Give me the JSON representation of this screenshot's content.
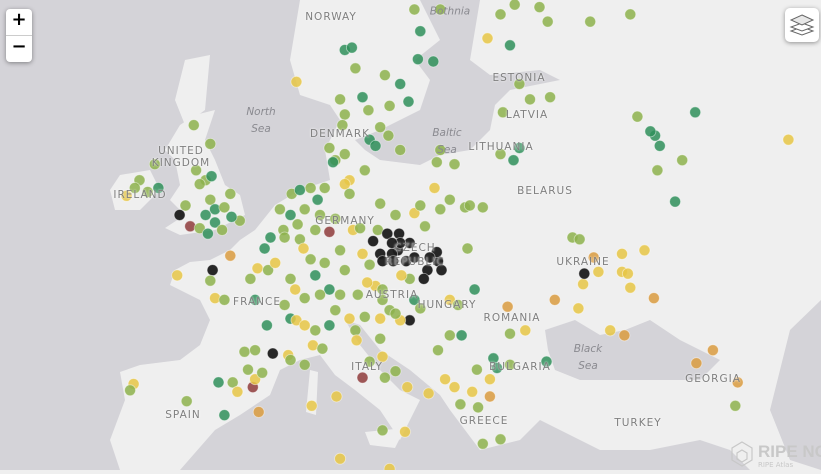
{
  "controls": {
    "zoom_in": "+",
    "zoom_out": "−",
    "layers_icon": "layers-icon"
  },
  "colors": {
    "sea": "#d4d3d8",
    "land": "#efefef",
    "g": "#2f8f5b",
    "lg": "#8db24c",
    "y": "#e6c545",
    "o": "#d99b40",
    "k": "#1b1b1b",
    "r": "#8e3b3b"
  },
  "labels": {
    "norway": "NORWAY",
    "bothnia": "Bothnia",
    "estonia": "ESTONIA",
    "latvia": "LATVIA",
    "lithuania": "LITHUANIA",
    "belarus": "BELARUS",
    "north_sea": [
      "North",
      "Sea"
    ],
    "denmark": "DENMARK",
    "baltic_sea": [
      "Baltic",
      "Sea"
    ],
    "united_kingdom": [
      "UNITED",
      "KINGDOM"
    ],
    "ireland": "IRELAND",
    "germany": "GERMANY",
    "czech": [
      "CZECH",
      "REPUBLIC"
    ],
    "ukraine": "UKRAINE",
    "austria": "AUSTRIA",
    "hungary": "HUNGARY",
    "france": "FRANCE",
    "romania": "ROMANIA",
    "black_sea": [
      "Black",
      "Sea"
    ],
    "bulgaria": "BULGARIA",
    "italy": "ITALY",
    "georgia": "GEORGIA",
    "spain": "SPAIN",
    "greece": "GREECE",
    "turkey": "TURKEY"
  },
  "logo": {
    "name": "RIPE NCC",
    "product": "RIPE Atlas"
  },
  "probes": [
    [
      11.0,
      59.4,
      "g"
    ],
    [
      11.6,
      59.5,
      "g"
    ],
    [
      11.9,
      58.6,
      "lg"
    ],
    [
      14.4,
      58.3,
      "lg"
    ],
    [
      15.7,
      57.9,
      "g"
    ],
    [
      17.2,
      59.0,
      "g"
    ],
    [
      18.5,
      58.9,
      "g"
    ],
    [
      17.4,
      60.2,
      "g"
    ],
    [
      16.9,
      61.1,
      "lg"
    ],
    [
      19.1,
      61.1,
      "lg"
    ],
    [
      24.2,
      60.9,
      "lg"
    ],
    [
      25.4,
      61.3,
      "lg"
    ],
    [
      27.5,
      61.2,
      "lg"
    ],
    [
      28.2,
      60.6,
      "lg"
    ],
    [
      25.0,
      59.6,
      "g"
    ],
    [
      23.1,
      59.9,
      "y"
    ],
    [
      6.9,
      58.0,
      "y"
    ],
    [
      10.6,
      57.2,
      "lg"
    ],
    [
      12.5,
      57.3,
      "g"
    ],
    [
      13.0,
      56.7,
      "lg"
    ],
    [
      14.8,
      56.9,
      "lg"
    ],
    [
      16.4,
      57.1,
      "g"
    ],
    [
      11.0,
      56.5,
      "lg"
    ],
    [
      10.8,
      56.0,
      "lg"
    ],
    [
      13.1,
      55.3,
      "g"
    ],
    [
      13.6,
      55.0,
      "g"
    ],
    [
      14.0,
      55.9,
      "lg"
    ],
    [
      14.7,
      55.5,
      "lg"
    ],
    [
      15.7,
      54.8,
      "lg"
    ],
    [
      9.7,
      54.9,
      "lg"
    ],
    [
      10.2,
      54.3,
      "lg"
    ],
    [
      11.0,
      54.6,
      "lg"
    ],
    [
      11.4,
      53.3,
      "y"
    ],
    [
      12.7,
      53.8,
      "lg"
    ],
    [
      10.0,
      54.2,
      "g"
    ],
    [
      19.1,
      54.8,
      "lg"
    ],
    [
      18.8,
      54.2,
      "lg"
    ],
    [
      20.3,
      54.1,
      "lg"
    ],
    [
      24.2,
      54.6,
      "lg"
    ],
    [
      25.3,
      54.3,
      "g"
    ],
    [
      25.8,
      54.9,
      "g"
    ],
    [
      24.4,
      56.6,
      "lg"
    ],
    [
      26.7,
      57.2,
      "lg"
    ],
    [
      28.4,
      57.3,
      "lg"
    ],
    [
      25.8,
      57.9,
      "lg"
    ],
    [
      31.8,
      60.6,
      "lg"
    ],
    [
      35.2,
      60.9,
      "lg"
    ],
    [
      35.8,
      56.4,
      "lg"
    ],
    [
      37.3,
      55.5,
      "g"
    ],
    [
      37.7,
      55.0,
      "g"
    ],
    [
      36.9,
      55.7,
      "g"
    ],
    [
      40.7,
      56.6,
      "g"
    ],
    [
      39.6,
      54.3,
      "lg"
    ],
    [
      37.5,
      53.8,
      "lg"
    ],
    [
      39.0,
      52.2,
      "g"
    ],
    [
      48.6,
      55.3,
      "y"
    ],
    [
      -1.8,
      56.0,
      "lg"
    ],
    [
      -0.4,
      55.1,
      "lg"
    ],
    [
      -5.1,
      54.1,
      "lg"
    ],
    [
      -6.4,
      53.3,
      "lg"
    ],
    [
      -6.8,
      52.9,
      "lg"
    ],
    [
      -4.8,
      52.9,
      "g"
    ],
    [
      -7.5,
      52.5,
      "y"
    ],
    [
      -5.7,
      52.7,
      "lg"
    ],
    [
      -1.6,
      53.8,
      "lg"
    ],
    [
      -0.8,
      53.3,
      "lg"
    ],
    [
      -0.3,
      53.5,
      "g"
    ],
    [
      -1.3,
      53.1,
      "lg"
    ],
    [
      -0.4,
      52.3,
      "lg"
    ],
    [
      0.0,
      51.8,
      "g"
    ],
    [
      0.8,
      51.9,
      "lg"
    ],
    [
      1.3,
      52.6,
      "lg"
    ],
    [
      2.1,
      51.2,
      "lg"
    ],
    [
      -3.0,
      51.5,
      "k"
    ],
    [
      -2.1,
      50.9,
      "r"
    ],
    [
      -1.3,
      50.8,
      "lg"
    ],
    [
      -0.6,
      50.5,
      "g"
    ],
    [
      0.0,
      51.1,
      "g"
    ],
    [
      0.6,
      50.7,
      "lg"
    ],
    [
      1.4,
      51.4,
      "g"
    ],
    [
      -2.5,
      52.0,
      "lg"
    ],
    [
      -0.8,
      51.5,
      "g"
    ],
    [
      5.5,
      51.8,
      "lg"
    ],
    [
      6.5,
      52.6,
      "lg"
    ],
    [
      7.2,
      52.8,
      "g"
    ],
    [
      8.1,
      52.9,
      "lg"
    ],
    [
      8.7,
      52.3,
      "g"
    ],
    [
      9.3,
      52.9,
      "lg"
    ],
    [
      6.4,
      51.5,
      "g"
    ],
    [
      7.0,
      51.0,
      "lg"
    ],
    [
      7.6,
      51.8,
      "lg"
    ],
    [
      5.8,
      50.7,
      "lg"
    ],
    [
      4.7,
      50.3,
      "g"
    ],
    [
      5.9,
      50.3,
      "lg"
    ],
    [
      7.2,
      50.2,
      "lg"
    ],
    [
      8.5,
      50.7,
      "lg"
    ],
    [
      9.7,
      50.6,
      "r"
    ],
    [
      10.2,
      51.3,
      "lg"
    ],
    [
      11.0,
      53.1,
      "y"
    ],
    [
      11.4,
      52.6,
      "lg"
    ],
    [
      8.9,
      51.5,
      "lg"
    ],
    [
      11.7,
      50.7,
      "y"
    ],
    [
      10.6,
      49.6,
      "lg"
    ],
    [
      12.3,
      50.8,
      "lg"
    ],
    [
      14.0,
      52.1,
      "lg"
    ],
    [
      13.8,
      50.7,
      "lg"
    ],
    [
      12.5,
      49.4,
      "y"
    ],
    [
      13.1,
      48.8,
      "lg"
    ],
    [
      11.0,
      48.5,
      "lg"
    ],
    [
      9.3,
      48.9,
      "lg"
    ],
    [
      8.1,
      49.1,
      "lg"
    ],
    [
      8.5,
      48.2,
      "g"
    ],
    [
      9.7,
      47.4,
      "g"
    ],
    [
      8.9,
      47.1,
      "lg"
    ],
    [
      7.6,
      46.9,
      "lg"
    ],
    [
      6.8,
      47.4,
      "y"
    ],
    [
      10.6,
      47.1,
      "lg"
    ],
    [
      12.1,
      47.1,
      "lg"
    ],
    [
      13.6,
      47.6,
      "y"
    ],
    [
      7.5,
      49.7,
      "y"
    ],
    [
      4.2,
      49.7,
      "g"
    ],
    [
      3.6,
      48.6,
      "y"
    ],
    [
      4.5,
      48.5,
      "lg"
    ],
    [
      5.1,
      48.9,
      "y"
    ],
    [
      6.4,
      48.0,
      "lg"
    ],
    [
      3.0,
      48.0,
      "lg"
    ],
    [
      -0.2,
      48.5,
      "k"
    ],
    [
      -0.4,
      47.9,
      "lg"
    ],
    [
      1.3,
      49.3,
      "o"
    ],
    [
      -3.2,
      48.2,
      "y"
    ],
    [
      0.0,
      46.9,
      "y"
    ],
    [
      0.8,
      46.8,
      "lg"
    ],
    [
      3.4,
      46.8,
      "g"
    ],
    [
      4.4,
      45.3,
      "g"
    ],
    [
      6.4,
      45.7,
      "g"
    ],
    [
      6.9,
      45.6,
      "y"
    ],
    [
      5.9,
      46.5,
      "lg"
    ],
    [
      7.6,
      45.3,
      "y"
    ],
    [
      8.5,
      45.0,
      "lg"
    ],
    [
      9.7,
      45.3,
      "g"
    ],
    [
      10.2,
      46.2,
      "lg"
    ],
    [
      11.4,
      45.7,
      "y"
    ],
    [
      11.9,
      45.0,
      "lg"
    ],
    [
      8.3,
      44.1,
      "y"
    ],
    [
      9.1,
      43.9,
      "lg"
    ],
    [
      2.5,
      43.7,
      "lg"
    ],
    [
      3.4,
      43.8,
      "lg"
    ],
    [
      4.9,
      43.6,
      "k"
    ],
    [
      6.2,
      43.5,
      "y"
    ],
    [
      6.4,
      43.2,
      "lg"
    ],
    [
      7.6,
      42.9,
      "lg"
    ],
    [
      2.8,
      42.6,
      "lg"
    ],
    [
      1.5,
      41.8,
      "lg"
    ],
    [
      3.2,
      41.5,
      "r"
    ],
    [
      3.4,
      42.0,
      "y"
    ],
    [
      4.0,
      42.4,
      "lg"
    ],
    [
      0.3,
      41.8,
      "g"
    ],
    [
      -6.9,
      41.7,
      "y"
    ],
    [
      -7.2,
      41.3,
      "lg"
    ],
    [
      -2.4,
      40.6,
      "lg"
    ],
    [
      0.8,
      39.7,
      "g"
    ],
    [
      3.7,
      39.9,
      "o"
    ],
    [
      1.9,
      41.2,
      "y"
    ],
    [
      13.4,
      50.1,
      "k"
    ],
    [
      14.6,
      50.5,
      "k"
    ],
    [
      15.6,
      50.5,
      "k"
    ],
    [
      16.5,
      50.0,
      "k"
    ],
    [
      15.5,
      49.6,
      "k"
    ],
    [
      15.0,
      49.4,
      "k"
    ],
    [
      14.0,
      49.4,
      "k"
    ],
    [
      14.2,
      49.0,
      "k"
    ],
    [
      15.1,
      49.0,
      "k"
    ],
    [
      16.2,
      49.0,
      "k"
    ],
    [
      16.9,
      49.2,
      "k"
    ],
    [
      18.0,
      48.5,
      "k"
    ],
    [
      18.9,
      49.0,
      "k"
    ],
    [
      18.8,
      49.5,
      "k"
    ],
    [
      19.2,
      48.5,
      "k"
    ],
    [
      18.2,
      49.2,
      "k"
    ],
    [
      17.7,
      48.0,
      "k"
    ],
    [
      16.5,
      45.6,
      "k"
    ],
    [
      15.7,
      50.0,
      "k"
    ],
    [
      15.0,
      50.0,
      "k"
    ],
    [
      16.9,
      51.6,
      "y"
    ],
    [
      17.4,
      52.0,
      "lg"
    ],
    [
      15.3,
      51.5,
      "lg"
    ],
    [
      18.6,
      52.9,
      "y"
    ],
    [
      19.1,
      51.8,
      "lg"
    ],
    [
      19.9,
      52.3,
      "lg"
    ],
    [
      21.2,
      51.9,
      "lg"
    ],
    [
      21.6,
      52.0,
      "lg"
    ],
    [
      22.7,
      51.9,
      "lg"
    ],
    [
      21.4,
      49.7,
      "lg"
    ],
    [
      17.8,
      50.9,
      "lg"
    ],
    [
      16.5,
      48.0,
      "lg"
    ],
    [
      15.8,
      48.2,
      "y"
    ],
    [
      14.2,
      47.4,
      "lg"
    ],
    [
      12.9,
      47.8,
      "y"
    ],
    [
      14.2,
      46.8,
      "lg"
    ],
    [
      14.8,
      46.2,
      "lg"
    ],
    [
      15.7,
      45.6,
      "y"
    ],
    [
      14.0,
      45.7,
      "y"
    ],
    [
      15.3,
      46.0,
      "lg"
    ],
    [
      16.9,
      46.8,
      "g"
    ],
    [
      19.9,
      46.8,
      "y"
    ],
    [
      22.0,
      47.4,
      "g"
    ],
    [
      20.6,
      46.5,
      "lg"
    ],
    [
      17.4,
      46.3,
      "lg"
    ],
    [
      12.7,
      45.8,
      "lg"
    ],
    [
      12.0,
      44.4,
      "y"
    ],
    [
      14.0,
      44.5,
      "lg"
    ],
    [
      14.2,
      43.4,
      "y"
    ],
    [
      13.1,
      43.1,
      "lg"
    ],
    [
      12.5,
      42.1,
      "r"
    ],
    [
      14.4,
      42.1,
      "lg"
    ],
    [
      15.3,
      42.5,
      "lg"
    ],
    [
      16.3,
      41.5,
      "y"
    ],
    [
      18.1,
      41.1,
      "y"
    ],
    [
      18.9,
      43.8,
      "lg"
    ],
    [
      19.9,
      44.7,
      "lg"
    ],
    [
      20.9,
      44.7,
      "g"
    ],
    [
      23.6,
      43.3,
      "g"
    ],
    [
      23.9,
      42.7,
      "g"
    ],
    [
      25.0,
      42.9,
      "lg"
    ],
    [
      22.2,
      42.6,
      "lg"
    ],
    [
      23.3,
      42.0,
      "y"
    ],
    [
      20.3,
      41.5,
      "y"
    ],
    [
      21.8,
      41.2,
      "y"
    ],
    [
      22.3,
      40.2,
      "lg"
    ],
    [
      23.3,
      40.9,
      "o"
    ],
    [
      20.8,
      40.4,
      "lg"
    ],
    [
      24.2,
      38.1,
      "lg"
    ],
    [
      22.7,
      37.8,
      "lg"
    ],
    [
      25.0,
      44.8,
      "lg"
    ],
    [
      26.3,
      45.0,
      "y"
    ],
    [
      28.1,
      43.1,
      "g"
    ],
    [
      24.8,
      46.4,
      "o"
    ],
    [
      28.8,
      46.8,
      "o"
    ],
    [
      30.8,
      46.3,
      "y"
    ],
    [
      30.3,
      50.3,
      "lg"
    ],
    [
      30.9,
      50.2,
      "lg"
    ],
    [
      32.1,
      49.2,
      "o"
    ],
    [
      31.2,
      47.7,
      "y"
    ],
    [
      32.5,
      48.4,
      "y"
    ],
    [
      34.5,
      49.4,
      "y"
    ],
    [
      34.5,
      48.4,
      "y"
    ],
    [
      35.0,
      48.3,
      "y"
    ],
    [
      35.2,
      47.5,
      "y"
    ],
    [
      36.4,
      49.6,
      "y"
    ],
    [
      33.5,
      45.0,
      "y"
    ],
    [
      34.7,
      44.7,
      "o"
    ],
    [
      37.2,
      46.9,
      "o"
    ],
    [
      42.2,
      43.8,
      "o"
    ],
    [
      40.8,
      43.0,
      "o"
    ],
    [
      44.3,
      41.8,
      "o"
    ],
    [
      44.1,
      40.3,
      "lg"
    ],
    [
      14.8,
      36.1,
      "y"
    ],
    [
      10.3,
      40.9,
      "y"
    ],
    [
      8.2,
      40.3,
      "y"
    ],
    [
      31.3,
      48.3,
      "k"
    ],
    [
      16.1,
      38.6,
      "y"
    ],
    [
      14.2,
      38.7,
      "lg"
    ],
    [
      10.6,
      36.8,
      "y"
    ],
    [
      19.5,
      42.0,
      "y"
    ]
  ]
}
